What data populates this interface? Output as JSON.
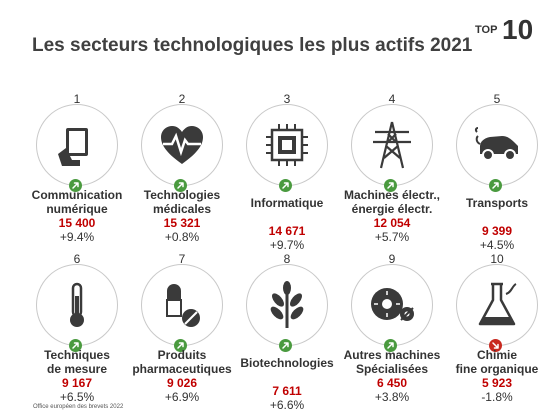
{
  "title": "Les secteurs technologiques les plus actifs 2021",
  "badge": {
    "top": "TOP",
    "number": "10"
  },
  "colors": {
    "value": "#c00000",
    "up": "#4a9a3f",
    "down": "#c8281e",
    "icon": "#3a3a3a"
  },
  "sectors": [
    {
      "rank": "1",
      "label1": "Communication",
      "label2": "numérique",
      "value": "15 400",
      "change": "+9.4%",
      "trend": "up",
      "icon": "tablet-icon"
    },
    {
      "rank": "2",
      "label1": "Technologies",
      "label2": "médicales",
      "value": "15 321",
      "change": "+0.8%",
      "trend": "up",
      "icon": "heart-pulse-icon"
    },
    {
      "rank": "3",
      "label1": "Informatique",
      "label2": "",
      "value": "14 671",
      "change": "+9.7%",
      "trend": "up",
      "icon": "chip-icon"
    },
    {
      "rank": "4",
      "label1": "Machines électr.,",
      "label2": "énergie électr.",
      "value": "12 054",
      "change": "+5.7%",
      "trend": "up",
      "icon": "power-pylon-icon"
    },
    {
      "rank": "5",
      "label1": "Transports",
      "label2": "",
      "value": "9 399",
      "change": "+4.5%",
      "trend": "up",
      "icon": "electric-car-icon"
    },
    {
      "rank": "6",
      "label1": "Techniques",
      "label2": "de mesure",
      "value": "9 167",
      "change": "+6.5%",
      "trend": "up",
      "icon": "thermometer-icon"
    },
    {
      "rank": "7",
      "label1": "Produits",
      "label2": "pharmaceutiques",
      "value": "9 026",
      "change": "+6.9%",
      "trend": "up",
      "icon": "pills-icon"
    },
    {
      "rank": "8",
      "label1": "Biotechnologies",
      "label2": "",
      "value": "7 611",
      "change": "+6.6%",
      "trend": "up",
      "icon": "plant-icon"
    },
    {
      "rank": "9",
      "label1": "Autres machines",
      "label2": "Spécialisées",
      "value": "6 450",
      "change": "+3.8%",
      "trend": "up",
      "icon": "saw-blade-icon"
    },
    {
      "rank": "10",
      "label1": "Chimie",
      "label2": "fine organique",
      "value": "5 923",
      "change": "-1.8%",
      "trend": "down",
      "icon": "flask-icon"
    }
  ],
  "footer": "Office européen des brevets 2022"
}
